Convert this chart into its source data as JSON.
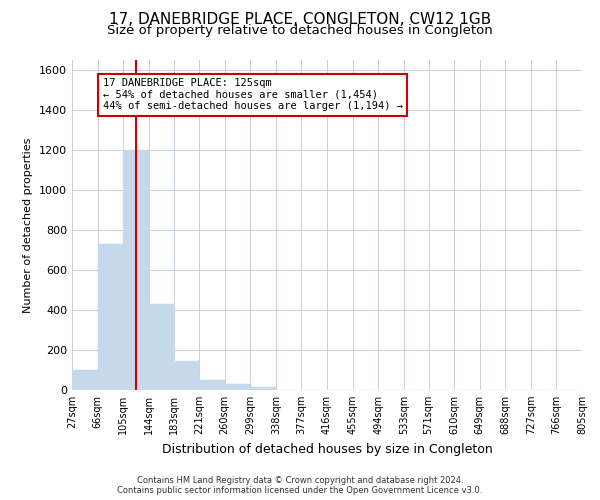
{
  "title": "17, DANEBRIDGE PLACE, CONGLETON, CW12 1GB",
  "subtitle": "Size of property relative to detached houses in Congleton",
  "xlabel": "Distribution of detached houses by size in Congleton",
  "ylabel": "Number of detached properties",
  "footer_line1": "Contains HM Land Registry data © Crown copyright and database right 2024.",
  "footer_line2": "Contains public sector information licensed under the Open Government Licence v3.0.",
  "bar_color": "#c6d9ec",
  "bar_edge_color": "#c6d9ec",
  "grid_color": "#c8d0dc",
  "annotation_line1": "17 DANEBRIDGE PLACE: 125sqm",
  "annotation_line2": "← 54% of detached houses are smaller (1,454)",
  "annotation_line3": "44% of semi-detached houses are larger (1,194) →",
  "annotation_box_color": "#ffffff",
  "annotation_box_edge": "#cc0000",
  "vline_color": "#cc0000",
  "vline_x": 125,
  "bin_edges": [
    27,
    66,
    105,
    144,
    183,
    221,
    260,
    299,
    338,
    377,
    416,
    455,
    494,
    533,
    571,
    610,
    649,
    688,
    727,
    766,
    805
  ],
  "bin_heights": [
    100,
    730,
    1200,
    430,
    143,
    50,
    30,
    15,
    0,
    0,
    0,
    0,
    0,
    0,
    0,
    0,
    0,
    0,
    0,
    0
  ],
  "ylim": [
    0,
    1650
  ],
  "yticks": [
    0,
    200,
    400,
    600,
    800,
    1000,
    1200,
    1400,
    1600
  ],
  "background_color": "#ffffff",
  "title_fontsize": 11,
  "subtitle_fontsize": 9.5,
  "xlabel_fontsize": 9,
  "ylabel_fontsize": 8,
  "tick_fontsize": 7,
  "footer_fontsize": 6
}
